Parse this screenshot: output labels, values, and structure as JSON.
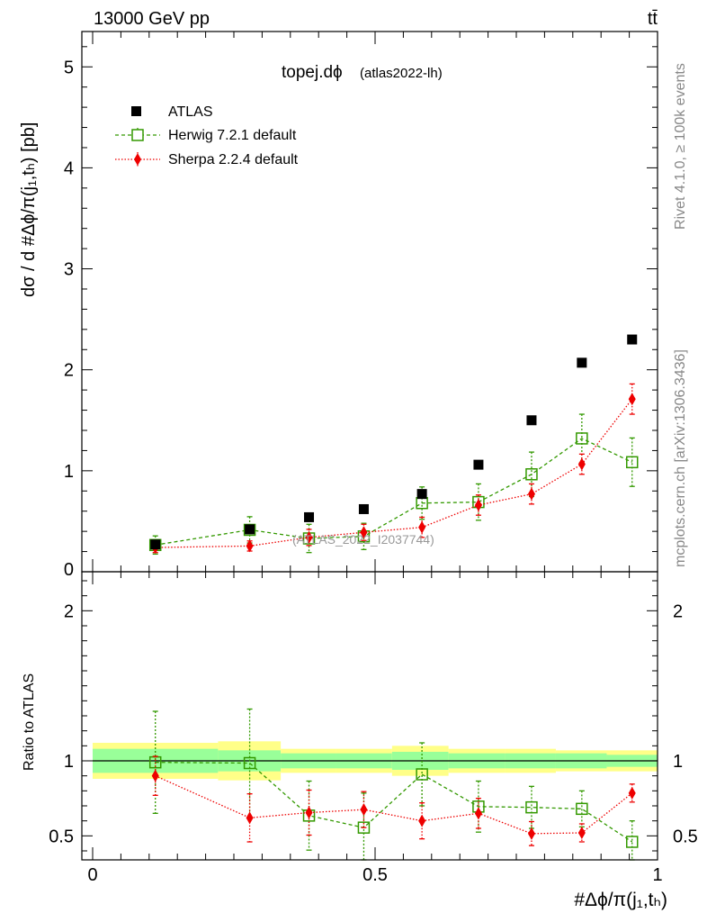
{
  "header": {
    "energy_label": "13000 GeV pp",
    "process_label": "tt̄"
  },
  "side_texts": {
    "rivet": "Rivet 4.1.0, ≥ 100k events",
    "mcplots": "mcplots.cern.ch [arXiv:1306.3436]"
  },
  "colors": {
    "atlas": "#000000",
    "herwig": "#339900",
    "sherpa": "#ee0000",
    "band_inner": "#99ff99",
    "band_outer": "#ffff88"
  },
  "chart_data": [
    {
      "type": "scatter",
      "title": "topej.dϕ",
      "title_suffix": "(atlas2022-lh)",
      "watermark": "(ATLAS_2022_I2037744)",
      "ylabel": "dσ / d #Δϕ/π(j₁,tₕ) [pb]",
      "ylim": [
        0,
        5.35
      ],
      "xlim": [
        0,
        1
      ],
      "yticks": [
        "0",
        "1",
        "2",
        "3",
        "4",
        "5"
      ],
      "legend": [
        "ATLAS",
        "Herwig 7.2.1 default",
        "Sherpa 2.2.4 default"
      ],
      "series": [
        {
          "name": "ATLAS",
          "style": "square-filled",
          "x": [
            0.111,
            0.278,
            0.383,
            0.48,
            0.583,
            0.683,
            0.777,
            0.866,
            0.955
          ],
          "y": [
            0.27,
            0.42,
            0.54,
            0.62,
            0.77,
            1.06,
            1.5,
            2.07,
            2.3
          ],
          "err": [
            0.04,
            0.04,
            0.03,
            0.03,
            0.04,
            0.04,
            0.05,
            0.06,
            0.07
          ]
        },
        {
          "name": "Herwig 7.2.1 default",
          "style": "square-open-dashed",
          "x": [
            0.111,
            0.278,
            0.383,
            0.48,
            0.583,
            0.683,
            0.777,
            0.866,
            0.955
          ],
          "y": [
            0.265,
            0.415,
            0.33,
            0.35,
            0.68,
            0.69,
            0.965,
            1.32,
            1.085
          ],
          "err": [
            0.09,
            0.13,
            0.14,
            0.13,
            0.16,
            0.18,
            0.22,
            0.24,
            0.24
          ]
        },
        {
          "name": "Sherpa 2.2.4 default",
          "style": "diamond-dotted",
          "x": [
            0.111,
            0.278,
            0.383,
            0.48,
            0.583,
            0.683,
            0.777,
            0.866,
            0.955
          ],
          "y": [
            0.24,
            0.255,
            0.34,
            0.39,
            0.44,
            0.66,
            0.77,
            1.065,
            1.71
          ],
          "err": [
            0.05,
            0.05,
            0.08,
            0.08,
            0.1,
            0.1,
            0.1,
            0.1,
            0.15
          ]
        }
      ]
    },
    {
      "type": "scatter",
      "title": "Ratio to ATLAS",
      "ylabel": "Ratio to ATLAS",
      "xlabel": "#Δϕ/π(j₁,tₕ)",
      "ylim": [
        0.34,
        2.26
      ],
      "xlim": [
        0,
        1
      ],
      "yticks": [
        "0.5",
        "1",
        "2"
      ],
      "xticks": [
        "0",
        "0.5",
        "1"
      ],
      "bands": {
        "edges": [
          0,
          0.222,
          0.333,
          0.43,
          0.53,
          0.63,
          0.73,
          0.82,
          0.91,
          1.0
        ],
        "inner": [
          0.08,
          0.07,
          0.05,
          0.05,
          0.06,
          0.05,
          0.05,
          0.05,
          0.04
        ],
        "outer": [
          0.12,
          0.13,
          0.08,
          0.08,
          0.1,
          0.08,
          0.08,
          0.07,
          0.07
        ]
      },
      "series": [
        {
          "name": "Herwig 7.2.1 default",
          "x": [
            0.111,
            0.278,
            0.383,
            0.48,
            0.583,
            0.683,
            0.777,
            0.866,
            0.955
          ],
          "y": [
            0.99,
            0.985,
            0.635,
            0.555,
            0.91,
            0.695,
            0.69,
            0.68,
            0.46
          ],
          "err": [
            0.34,
            0.36,
            0.23,
            0.23,
            0.21,
            0.17,
            0.14,
            0.12,
            0.14
          ]
        },
        {
          "name": "Sherpa 2.2.4 default",
          "x": [
            0.111,
            0.278,
            0.383,
            0.48,
            0.583,
            0.683,
            0.777,
            0.866,
            0.955
          ],
          "y": [
            0.9,
            0.62,
            0.655,
            0.675,
            0.6,
            0.65,
            0.515,
            0.52,
            0.785
          ],
          "err": [
            0.13,
            0.16,
            0.15,
            0.12,
            0.12,
            0.1,
            0.08,
            0.06,
            0.06
          ]
        }
      ]
    }
  ]
}
